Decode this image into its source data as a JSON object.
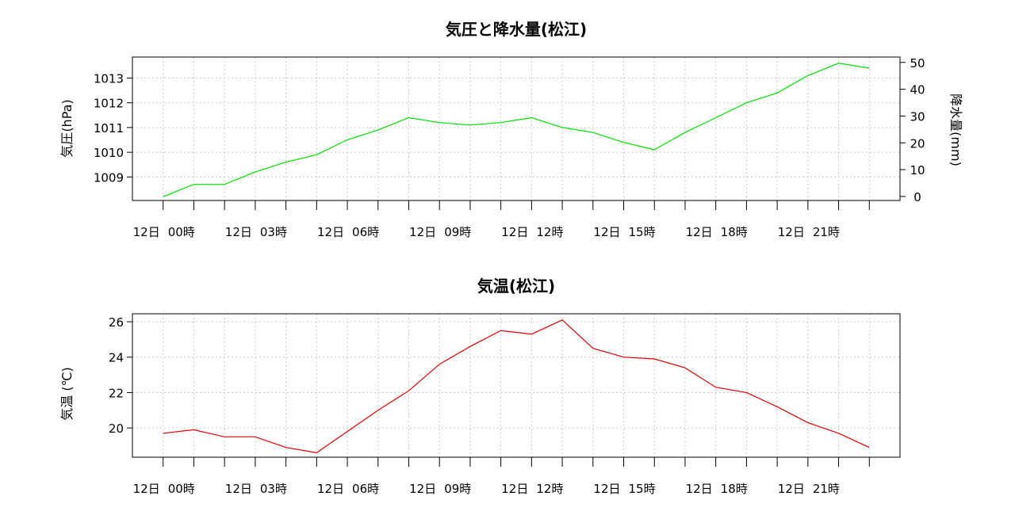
{
  "chart_data": [
    {
      "type": "line",
      "title": "気圧と降水量(松江)",
      "ylabel": "気圧(hPa)",
      "y2label": "降水量(mm)",
      "x": [
        0,
        1,
        2,
        3,
        4,
        5,
        6,
        7,
        8,
        9,
        10,
        11,
        12,
        13,
        14,
        15,
        16,
        17,
        18,
        19,
        20,
        21,
        22,
        23
      ],
      "xtick_labels": [
        {
          "day": "12日",
          "time": "00時"
        },
        {
          "day": "12日",
          "time": "03時"
        },
        {
          "day": "12日",
          "time": "06時"
        },
        {
          "day": "12日",
          "time": "09時"
        },
        {
          "day": "12日",
          "time": "12時"
        },
        {
          "day": "12日",
          "time": "15時"
        },
        {
          "day": "12日",
          "time": "18時"
        },
        {
          "day": "12日",
          "time": "21時"
        }
      ],
      "xtick_hours": [
        0,
        3,
        6,
        9,
        12,
        15,
        18,
        21
      ],
      "xlim": [
        -1,
        24
      ],
      "yticks": [
        1009,
        1010,
        1011,
        1012,
        1013
      ],
      "ylim": [
        1008.05,
        1013.85
      ],
      "y2ticks": [
        0,
        10,
        20,
        30,
        40,
        50
      ],
      "y2lim": [
        -1.5,
        52
      ],
      "grid": true,
      "series": [
        {
          "axis": "left",
          "color": "#00dd00",
          "values": [
            1008.2,
            1008.7,
            1008.7,
            1009.2,
            1009.6,
            1009.9,
            1010.5,
            1010.9,
            1011.4,
            1011.2,
            1011.1,
            1011.2,
            1011.4,
            1011.0,
            1010.8,
            1010.4,
            1010.1,
            1010.8,
            1011.4,
            1012.0,
            1012.4,
            1013.1,
            1013.6,
            1013.4
          ]
        }
      ]
    },
    {
      "type": "line",
      "title": "気温(松江)",
      "ylabel": "気温 (℃)",
      "x": [
        0,
        1,
        2,
        3,
        4,
        5,
        6,
        7,
        8,
        9,
        10,
        11,
        12,
        13,
        14,
        15,
        16,
        17,
        18,
        19,
        20,
        21,
        22,
        23
      ],
      "xtick_labels": [
        {
          "day": "12日",
          "time": "00時"
        },
        {
          "day": "12日",
          "time": "03時"
        },
        {
          "day": "12日",
          "time": "06時"
        },
        {
          "day": "12日",
          "time": "09時"
        },
        {
          "day": "12日",
          "time": "12時"
        },
        {
          "day": "12日",
          "time": "15時"
        },
        {
          "day": "12日",
          "time": "18時"
        },
        {
          "day": "12日",
          "time": "21時"
        }
      ],
      "xtick_hours": [
        0,
        3,
        6,
        9,
        12,
        15,
        18,
        21
      ],
      "xlim": [
        -1,
        24
      ],
      "yticks": [
        20,
        22,
        24,
        26
      ],
      "ylim": [
        18.35,
        26.45
      ],
      "grid": true,
      "series": [
        {
          "axis": "left",
          "color": "#dd0000",
          "values": [
            19.7,
            19.9,
            19.5,
            19.5,
            18.9,
            18.6,
            19.8,
            21.0,
            22.1,
            23.6,
            24.6,
            25.5,
            25.3,
            26.1,
            24.5,
            24.0,
            23.9,
            23.4,
            22.3,
            22.0,
            21.2,
            20.3,
            19.7,
            18.9
          ]
        }
      ]
    }
  ]
}
